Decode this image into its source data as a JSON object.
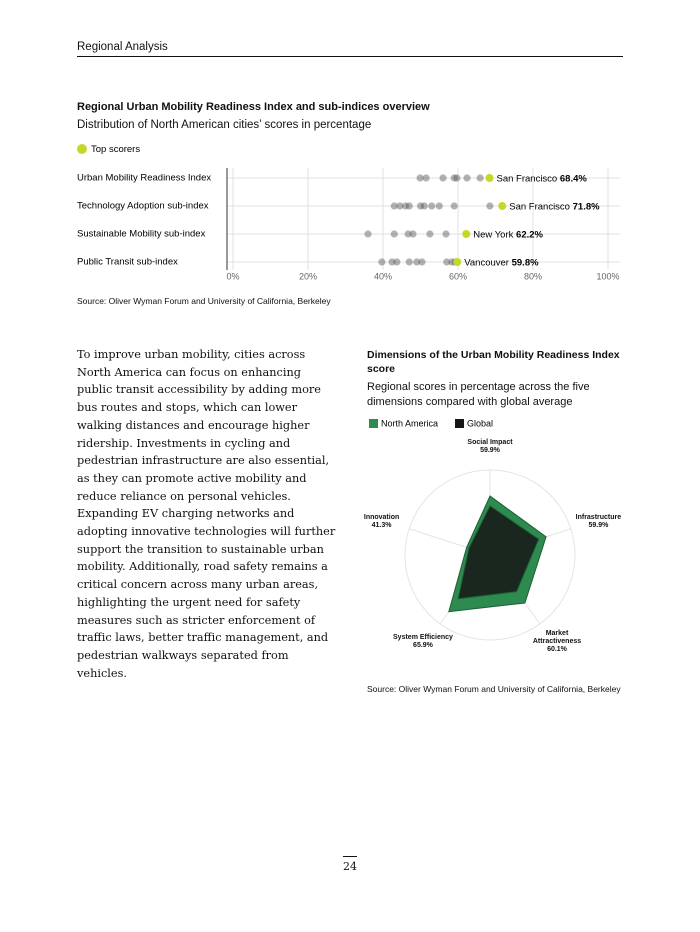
{
  "header": {
    "title": "Regional Analysis"
  },
  "chart_data": [
    {
      "type": "strip",
      "title": "Regional Urban Mobility Readiness Index and sub-indices overview",
      "subtitle": "Distribution of North American cities’ scores in percentage",
      "categories": [
        "Urban Mobility Readiness Index",
        "Technology Adoption sub-index",
        "Sustainable Mobility sub-index",
        "Public Transit sub-index"
      ],
      "series": [
        {
          "name": "Top scorers",
          "color": "#c5d82a",
          "labels": [
            "San Francisco",
            "San Francisco",
            "New York",
            "Vancouver"
          ],
          "values": [
            68.4,
            71.8,
            62.2,
            59.8
          ],
          "value_labels": [
            "68.4%",
            "71.8%",
            "62.2%",
            "59.8%"
          ]
        }
      ],
      "dots": {
        "color": "#555555",
        "values": [
          [
            49.9,
            51.5,
            56,
            59,
            59.7,
            62.4,
            65.9
          ],
          [
            43,
            44.5,
            46,
            47,
            50,
            51,
            53,
            55,
            59,
            68.5
          ],
          [
            36,
            43,
            46.7,
            48,
            52.5,
            56.8
          ],
          [
            39.7,
            42.4,
            43.7,
            47,
            49,
            50.4,
            57,
            58.4,
            59.2
          ]
        ]
      },
      "xlim": [
        0,
        100
      ],
      "xticks": [
        {
          "value": 0,
          "label": "0%"
        },
        {
          "value": 20,
          "label": "20%"
        },
        {
          "value": 40,
          "label": "40%"
        },
        {
          "value": 60,
          "label": "60%"
        },
        {
          "value": 80,
          "label": "80%"
        },
        {
          "value": 100,
          "label": "100%"
        }
      ],
      "grid": true,
      "source": "Source: Oliver Wyman Forum and University of California, Berkeley"
    },
    {
      "type": "radar",
      "title": "Dimensions of the Urban Mobility Readiness Index score",
      "subtitle": "Regional scores in percentage across the five dimensions compared with global average",
      "categories": [
        "Social Impact",
        "Infrastructure",
        "Market Attractiveness",
        "System Efficiency",
        "Innovation"
      ],
      "series": [
        {
          "name": "North America",
          "color": "#2e8b50",
          "values": [
            59.9,
            59.9,
            60.1,
            65.9,
            41.3
          ],
          "value_labels": [
            "59.9%",
            "59.9%",
            "60.1%",
            "65.9%",
            "41.3%"
          ]
        },
        {
          "name": "Global",
          "color": "#151515",
          "values": [
            54.6,
            55.7,
            52.5,
            57.3,
            40
          ]
        }
      ],
      "rlim": [
        28,
        74
      ],
      "source": "Source: Oliver Wyman Forum and University of California, Berkeley"
    }
  ],
  "body": "To improve urban mobility, cities across North America can focus on enhancing public transit accessibility by adding more bus routes and stops, which can lower walking distances and encourage higher ridership. Investments in cycling and pedestrian infrastructure are also essential, as they can promote active mobility and reduce reliance on personal vehicles. Expanding EV charging networks and adopting innovative technologies will further support the transition to sustainable urban mobility. Additionally, road safety remains a critical concern across many urban areas, highlighting the urgent need for safety measures such as stricter enforcement of traffic laws, better traffic management, and pedestrian walkways separated from vehicles.",
  "page_number": "24"
}
